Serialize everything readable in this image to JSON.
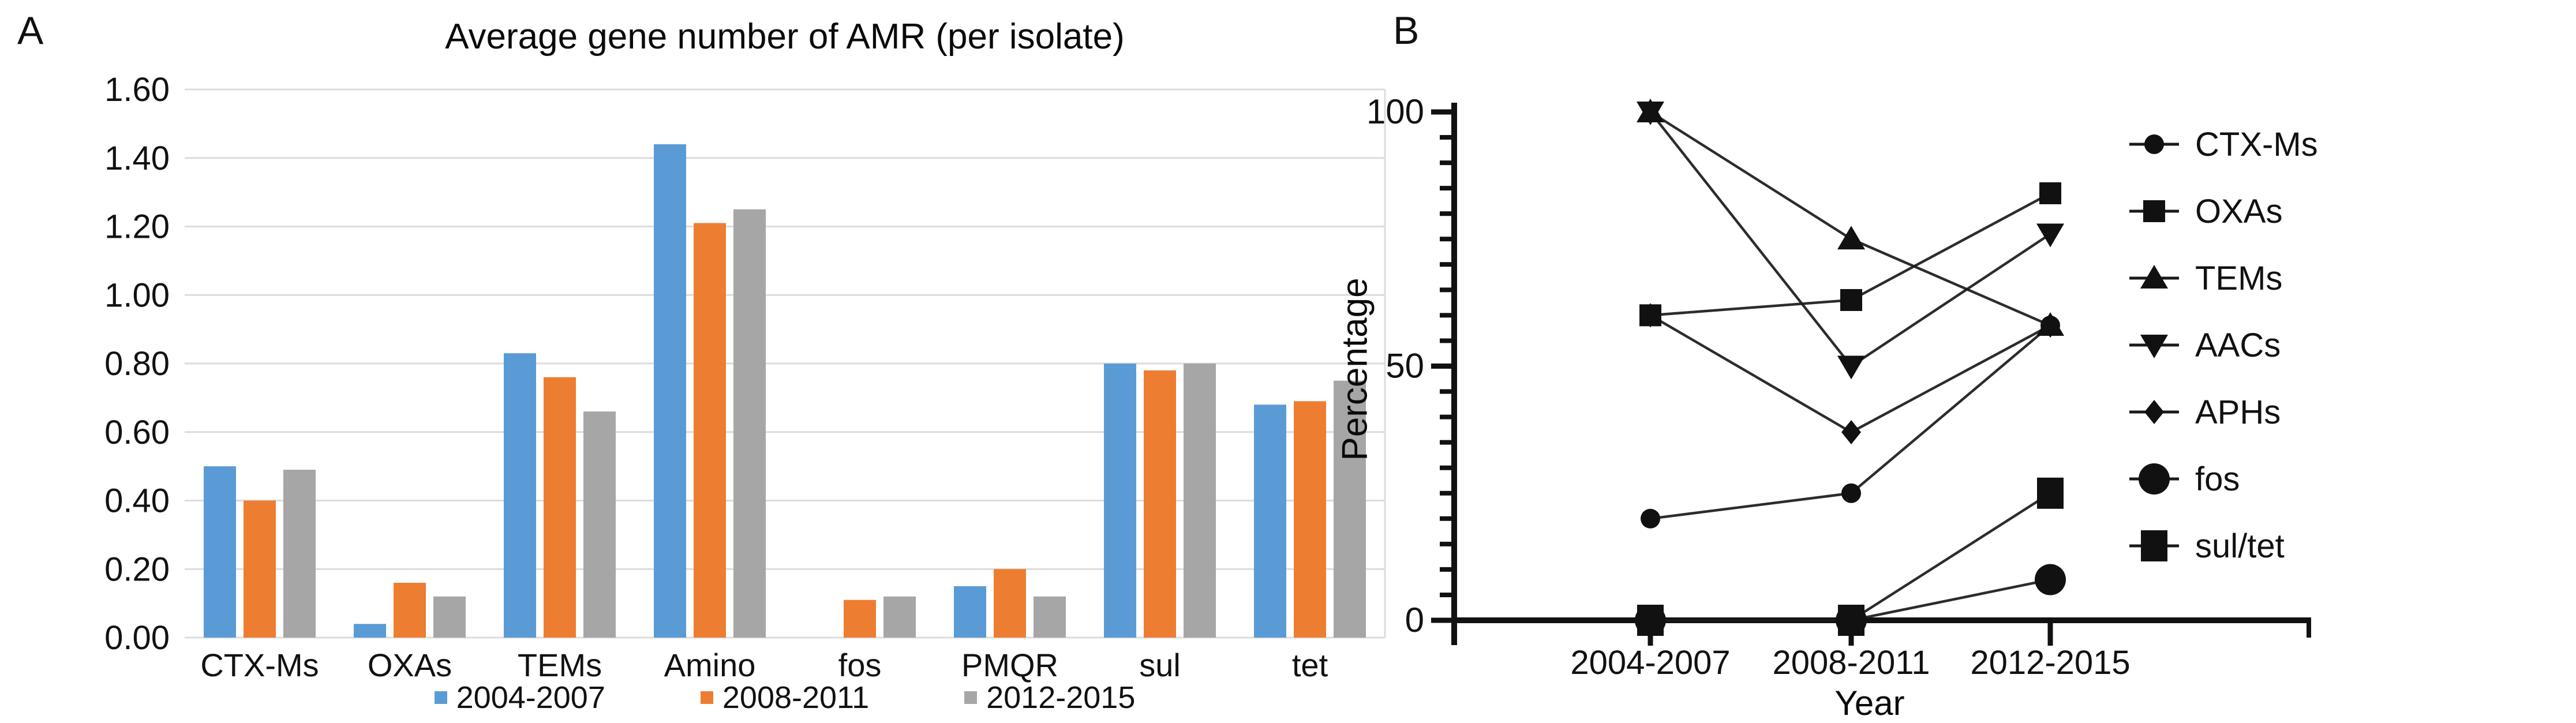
{
  "figure": {
    "panelA": {
      "panel_label": "A"
    },
    "panelB": {
      "panel_label": "B"
    }
  },
  "chart_data": [
    {
      "id": "amr-average-gene-bar-chart",
      "type": "bar",
      "title": "Average gene number of AMR (per isolate)",
      "categories": [
        "CTX-Ms",
        "OXAs",
        "TEMs",
        "Amino",
        "fos",
        "PMQR",
        "sul",
        "tet"
      ],
      "series": [
        {
          "name": "2004-2007",
          "color": "#5B9BD5",
          "values": [
            0.5,
            0.04,
            0.83,
            1.44,
            0.0,
            0.15,
            0.8,
            0.68
          ]
        },
        {
          "name": "2008-2011",
          "color": "#ED7D31",
          "values": [
            0.4,
            0.16,
            0.76,
            1.21,
            0.11,
            0.2,
            0.78,
            0.69
          ]
        },
        {
          "name": "2012-2015",
          "color": "#A6A6A6",
          "values": [
            0.49,
            0.12,
            0.66,
            1.25,
            0.12,
            0.12,
            0.8,
            0.75
          ]
        }
      ],
      "xlabel": "",
      "ylabel": "",
      "ylim": [
        0,
        1.6
      ],
      "ytick_step": 0.2,
      "ytick_format": "2dp",
      "grid": "horizontal",
      "gridline_color": "#DCDCDC",
      "legend_position": "bottom"
    },
    {
      "id": "amr-percentage-line-chart",
      "type": "line",
      "title": "",
      "x_categories": [
        "2004-2007",
        "2008-2011",
        "2012-2015"
      ],
      "xlabel": "Year",
      "ylabel": "Percentage",
      "ylim": [
        0,
        100
      ],
      "yticks": [
        0,
        50,
        100
      ],
      "minor_tick_step": 5,
      "line_color": "#1a1a1a",
      "marker_color": "#111111",
      "legend_position": "right",
      "series": [
        {
          "name": "CTX-Ms",
          "marker": "circle",
          "size": "small",
          "values": [
            20,
            25,
            58
          ]
        },
        {
          "name": "OXAs",
          "marker": "square",
          "size": "small",
          "values": [
            60,
            63,
            84
          ]
        },
        {
          "name": "TEMs",
          "marker": "triangle-up",
          "size": "small",
          "values": [
            100,
            75,
            58
          ]
        },
        {
          "name": "AACs",
          "marker": "triangle-down",
          "size": "small",
          "values": [
            100,
            50,
            76
          ]
        },
        {
          "name": "APHs",
          "marker": "diamond",
          "size": "small",
          "values": [
            60,
            37,
            58
          ]
        },
        {
          "name": "fos",
          "marker": "circle",
          "size": "large",
          "values": [
            0,
            0,
            8
          ]
        },
        {
          "name": "sul/tet",
          "marker": "square",
          "size": "large",
          "values": [
            0,
            0,
            25
          ]
        }
      ]
    }
  ]
}
